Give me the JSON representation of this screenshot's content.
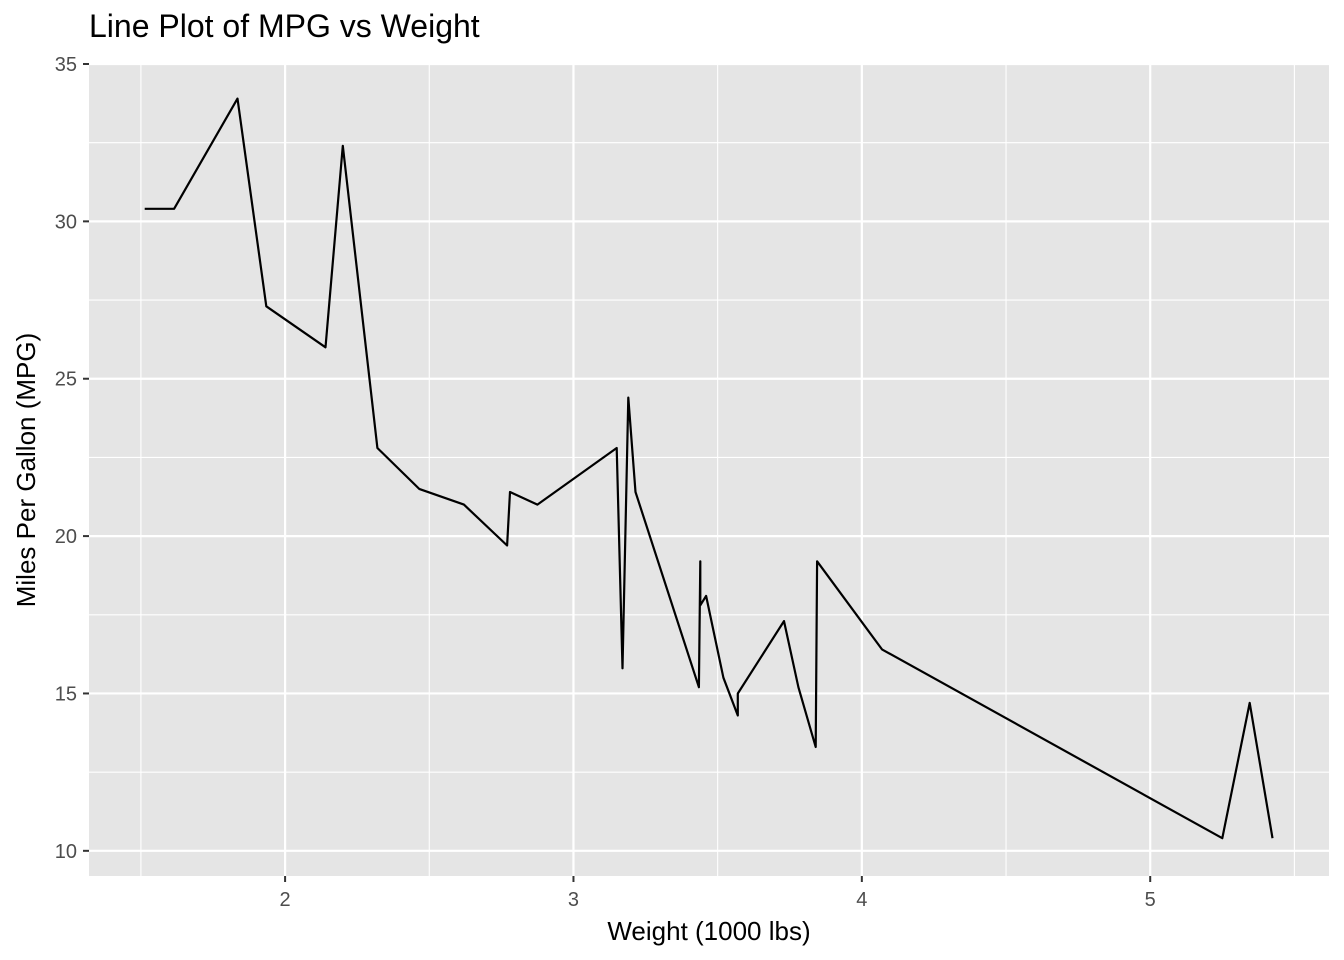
{
  "chart_data": {
    "type": "line",
    "title": "Line Plot of MPG vs Weight",
    "xlabel": "Weight (1000 lbs)",
    "ylabel": "Miles Per Gallon (MPG)",
    "xlim": [
      1.32,
      5.62
    ],
    "ylim": [
      9.2,
      35.0
    ],
    "xticks": [
      2,
      3,
      4,
      5
    ],
    "yticks": [
      10,
      15,
      20,
      25,
      30,
      35
    ],
    "grid": true,
    "line_color": "#000000",
    "panel_color": "#e5e5e5",
    "series": [
      {
        "x": [
          1.513,
          1.615,
          1.835,
          1.935,
          2.14,
          2.2,
          2.32,
          2.465,
          2.62,
          2.77,
          2.78,
          2.875,
          3.15,
          3.17,
          3.19,
          3.215,
          3.435,
          3.44,
          3.44,
          3.46,
          3.52,
          3.57,
          3.57,
          3.73,
          3.78,
          3.84,
          3.845,
          4.07,
          5.25,
          5.345,
          5.424
        ],
        "y": [
          30.4,
          30.4,
          33.9,
          27.3,
          26.0,
          32.4,
          22.8,
          21.5,
          21.0,
          19.7,
          21.4,
          21.0,
          22.8,
          15.8,
          24.4,
          21.4,
          15.2,
          19.2,
          17.8,
          18.1,
          15.5,
          14.3,
          15.0,
          17.3,
          15.2,
          13.3,
          19.2,
          16.4,
          10.4,
          14.7,
          10.4
        ]
      }
    ]
  }
}
